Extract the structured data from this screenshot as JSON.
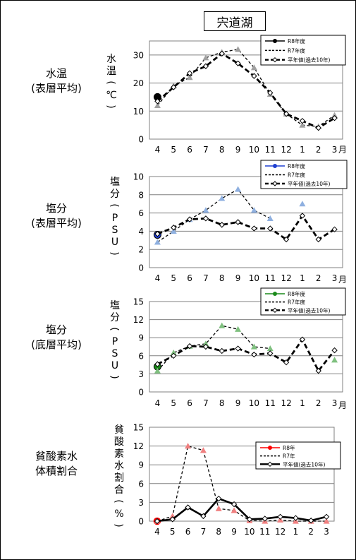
{
  "page_title": "宍道湖",
  "row_labels": [
    {
      "line1": "水温",
      "line2": "(表層平均)"
    },
    {
      "line1": "塩分",
      "line2": "(表層平均)"
    },
    {
      "line1": "塩分",
      "line2": "(底層平均)"
    },
    {
      "line1": "貧酸素水",
      "line2": "体積割合"
    }
  ],
  "chart_data": [
    {
      "type": "line",
      "ylabel": "水温(℃)",
      "ylim": [
        0,
        35
      ],
      "yticks": [
        0,
        10,
        20,
        30
      ],
      "categories": [
        "4",
        "5",
        "6",
        "7",
        "8",
        "9",
        "10",
        "11",
        "12",
        "1",
        "2",
        "3"
      ],
      "month_unit": "月",
      "series": [
        {
          "name": "R8年度",
          "color": "#000000",
          "style": "solid-dot",
          "values": [
            15,
            null,
            null,
            null,
            null,
            null,
            null,
            null,
            null,
            null,
            null,
            null
          ]
        },
        {
          "name": "R7年度",
          "color": "#a0a0a0",
          "style": "dashed-triangle",
          "values": [
            12,
            19,
            22,
            29,
            31,
            32,
            25.5,
            16,
            9,
            5,
            4.5,
            8.5
          ]
        },
        {
          "name": "平年値(過去10年)",
          "color": "#000000",
          "style": "bold-dashed-diamond",
          "values": [
            13.5,
            18.5,
            23.5,
            26,
            30.5,
            27,
            22.5,
            16.5,
            9,
            6.5,
            4,
            7.5
          ]
        }
      ]
    },
    {
      "type": "line",
      "ylabel": "塩分(PSU)",
      "ylim": [
        0,
        10
      ],
      "yticks": [
        0,
        2,
        4,
        6,
        8,
        10
      ],
      "categories": [
        "4",
        "5",
        "6",
        "7",
        "8",
        "9",
        "10",
        "11",
        "12",
        "1",
        "2",
        "3"
      ],
      "month_unit": "月",
      "series": [
        {
          "name": "R8年度",
          "color": "#1f3fd0",
          "style": "solid-dot",
          "values": [
            3.6,
            null,
            null,
            null,
            null,
            null,
            null,
            null,
            null,
            null,
            null,
            null
          ]
        },
        {
          "name": "R7年度",
          "color": "#8fb0e0",
          "style": "dashed-triangle",
          "values": [
            2.8,
            4.0,
            5.3,
            6.3,
            7.6,
            8.6,
            6.3,
            5.4,
            null,
            7.0,
            null,
            null
          ]
        },
        {
          "name": "平年値(過去10年)",
          "color": "#000000",
          "style": "bold-dashed-diamond",
          "values": [
            3.7,
            4.4,
            5.3,
            5.4,
            4.7,
            5.0,
            4.3,
            4.3,
            3.1,
            5.7,
            3.1,
            4.2
          ]
        }
      ]
    },
    {
      "type": "line",
      "ylabel": "塩分(PSU)",
      "ylim": [
        0,
        15
      ],
      "yticks": [
        0,
        3,
        6,
        9,
        12,
        15
      ],
      "categories": [
        "4",
        "5",
        "6",
        "7",
        "8",
        "9",
        "10",
        "11",
        "12",
        "1",
        "2",
        "3"
      ],
      "month_unit": "月",
      "series": [
        {
          "name": "R8年度",
          "color": "#1a8a1a",
          "style": "solid-dot",
          "values": [
            4.2,
            null,
            null,
            null,
            null,
            null,
            null,
            null,
            null,
            null,
            null,
            null
          ]
        },
        {
          "name": "R7年度",
          "color": "#7fc07f",
          "style": "dashed-triangle",
          "values": [
            3.5,
            6.5,
            7.6,
            8.0,
            11.0,
            10.4,
            7.5,
            7.2,
            null,
            null,
            null,
            5.3
          ]
        },
        {
          "name": "平年値(過去10年)",
          "color": "#000000",
          "style": "bold-dashed-diamond",
          "values": [
            4.6,
            6.0,
            7.6,
            7.5,
            6.8,
            7.2,
            6.2,
            6.4,
            4.9,
            8.7,
            3.5,
            6.9
          ]
        }
      ]
    },
    {
      "type": "line",
      "ylabel": "貧酸素水割合(%)",
      "ylim": [
        0,
        15
      ],
      "yticks": [
        0,
        3,
        6,
        9,
        12,
        15
      ],
      "categories": [
        "4",
        "5",
        "6",
        "7",
        "8",
        "9",
        "10",
        "11",
        "12",
        "1",
        "2",
        "3"
      ],
      "month_unit": "",
      "series": [
        {
          "name": "R8年",
          "color": "#ff0000",
          "style": "solid-dot",
          "values": [
            0,
            null,
            null,
            null,
            null,
            null,
            null,
            null,
            null,
            null,
            null,
            null
          ]
        },
        {
          "name": "R7年",
          "color": "#f08080",
          "style": "dashed-triangle",
          "values": [
            0,
            0.8,
            12.0,
            11.3,
            2.0,
            1.7,
            0.1,
            0,
            0.2,
            0,
            0,
            0
          ]
        },
        {
          "name": "平年値(過去10年)",
          "color": "#000000",
          "style": "bold-solid-diamond",
          "values": [
            0,
            0.3,
            2.2,
            0.8,
            3.6,
            2.7,
            0.3,
            0.4,
            0.7,
            0.5,
            0.1,
            0.7
          ]
        }
      ]
    }
  ]
}
